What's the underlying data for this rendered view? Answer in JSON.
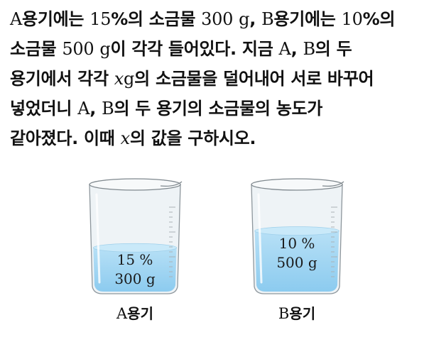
{
  "problem": {
    "lines": [
      [
        {
          "t": "A",
          "s": "m"
        },
        {
          "t": "용기에는 "
        },
        {
          "t": "15",
          "s": "m"
        },
        {
          "t": "%의 소금물 "
        },
        {
          "t": "300",
          "s": "m"
        },
        {
          "t": " "
        },
        {
          "t": "g",
          "s": "m"
        },
        {
          "t": ", "
        },
        {
          "t": "B",
          "s": "m"
        },
        {
          "t": "용기에는 "
        },
        {
          "t": "10",
          "s": "m"
        },
        {
          "t": "%의"
        }
      ],
      [
        {
          "t": "소금물 "
        },
        {
          "t": "500",
          "s": "m"
        },
        {
          "t": " "
        },
        {
          "t": "g",
          "s": "m"
        },
        {
          "t": "이 각각 들어있다. 지금 "
        },
        {
          "t": "A",
          "s": "m"
        },
        {
          "t": ", "
        },
        {
          "t": "B",
          "s": "m"
        },
        {
          "t": "의 두"
        }
      ],
      [
        {
          "t": "용기에서 각각 "
        },
        {
          "t": "x",
          "s": "mi"
        },
        {
          "t": "g",
          "s": "m"
        },
        {
          "t": "의 소금물을 덜어내어 서로 바꾸어"
        }
      ],
      [
        {
          "t": "넣었더니 "
        },
        {
          "t": "A",
          "s": "m"
        },
        {
          "t": ", "
        },
        {
          "t": "B",
          "s": "m"
        },
        {
          "t": "의 두 용기의 소금물의 농도가"
        }
      ],
      [
        {
          "t": "같아졌다. 이때 "
        },
        {
          "t": "x",
          "s": "mi"
        },
        {
          "t": "의 값을 구하시오."
        }
      ]
    ]
  },
  "figure": {
    "beakers": [
      {
        "concentration": "15 %",
        "amount": "300 g",
        "label_letter": "A",
        "label_suffix": "용기",
        "water_level": 0.46
      },
      {
        "concentration": "10 %",
        "amount": "500 g",
        "label_letter": "B",
        "label_suffix": "용기",
        "water_level": 0.64
      }
    ],
    "water_color": "#8ccbef",
    "glass_color": "#eef3f6"
  }
}
